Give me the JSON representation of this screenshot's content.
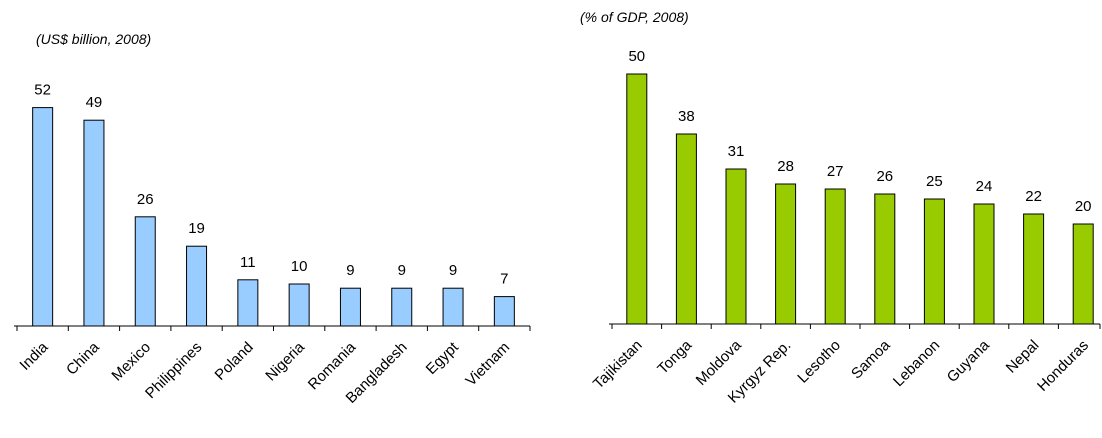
{
  "chart_data": [
    {
      "type": "bar",
      "subtitle": "(US$ billion, 2008)",
      "categories": [
        "India",
        "China",
        "Mexico",
        "Philippines",
        "Poland",
        "Nigeria",
        "Romania",
        "Bangladesh",
        "Egypt",
        "Vietnam"
      ],
      "values": [
        52,
        49,
        26,
        19,
        11,
        10,
        9,
        9,
        9,
        7
      ],
      "color": "#99ccff"
    },
    {
      "type": "bar",
      "subtitle": "(% of GDP, 2008)",
      "categories": [
        "Tajikistan",
        "Tonga",
        "Moldova",
        "Kyrgyz Rep.",
        "Lesotho",
        "Samoa",
        "Lebanon",
        "Guyana",
        "Nepal",
        "Honduras"
      ],
      "values": [
        50,
        38,
        31,
        28,
        27,
        26,
        25,
        24,
        22,
        20
      ],
      "color": "#99cc00"
    }
  ]
}
